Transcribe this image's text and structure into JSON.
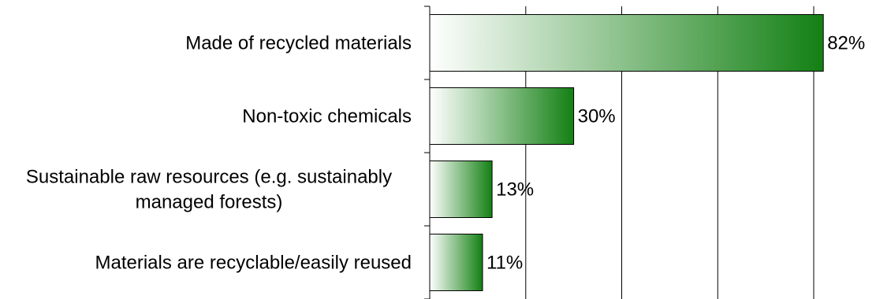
{
  "chart_data": {
    "type": "bar",
    "orientation": "horizontal",
    "categories": [
      [
        "Made of recycled materials"
      ],
      [
        "Non-toxic chemicals"
      ],
      [
        "Sustainable raw resources (e.g. sustainably",
        "managed forests)"
      ],
      [
        "Materials are recyclable/easily reused"
      ]
    ],
    "values": [
      82,
      30,
      13,
      11
    ],
    "value_labels": [
      "82%",
      "30%",
      "13%",
      "11%"
    ],
    "title": "",
    "xlabel": "",
    "ylabel": "",
    "xlim": [
      0,
      90
    ],
    "grid": true,
    "legend": "none",
    "bar_color": "#138013",
    "bar_fade_color": "#ffffff",
    "bar_border_color": "#000000",
    "grid_color": "#000000"
  }
}
